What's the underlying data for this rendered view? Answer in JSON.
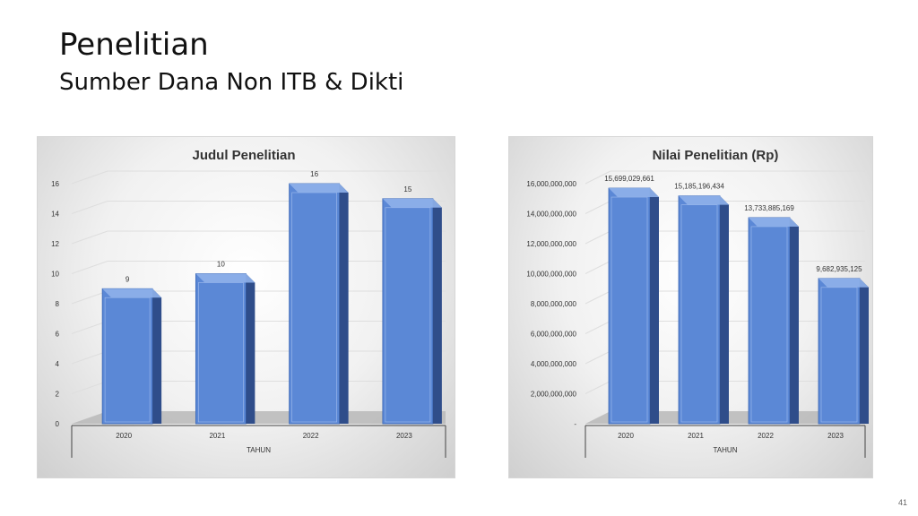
{
  "slide": {
    "title": "Penelitian",
    "subtitle": "Sumber Dana Non ITB & Dikti",
    "page_number": "41"
  },
  "colors": {
    "bar_front": "#5b88d6",
    "bar_side": "#2f4d8a",
    "bar_top": "#8fb1ea",
    "floor": "#b8b8b8",
    "gridline": "#dedede"
  },
  "chart_data": [
    {
      "type": "bar",
      "title": "Judul Penelitian",
      "xlabel": "TAHUN",
      "ylabel": "",
      "categories": [
        "2020",
        "2021",
        "2022",
        "2023"
      ],
      "values": [
        9,
        10,
        16,
        15
      ],
      "value_labels": [
        "9",
        "10",
        "16",
        "15"
      ],
      "ylim": [
        0,
        16
      ],
      "y_ticks": [
        0,
        2,
        4,
        6,
        8,
        10,
        12,
        14,
        16
      ],
      "y_tick_labels": [
        "0",
        "2",
        "4",
        "6",
        "8",
        "10",
        "12",
        "14",
        "16"
      ],
      "grid": true,
      "legend": "none"
    },
    {
      "type": "bar",
      "title": "Nilai Penelitian (Rp)",
      "xlabel": "TAHUN",
      "ylabel": "",
      "categories": [
        "2020",
        "2021",
        "2022",
        "2023"
      ],
      "values": [
        15699029661,
        15185196434,
        13733885169,
        9682935125
      ],
      "value_labels": [
        "15,699,029,661",
        "15,185,196,434",
        "13,733,885,169",
        "9,682,935,125"
      ],
      "ylim": [
        0,
        16000000000
      ],
      "y_ticks": [
        0,
        2000000000,
        4000000000,
        6000000000,
        8000000000,
        10000000000,
        12000000000,
        14000000000,
        16000000000
      ],
      "y_tick_labels": [
        "-",
        "2,000,000,000",
        "4,000,000,000",
        "6,000,000,000",
        "8,000,000,000",
        "10,000,000,000",
        "12,000,000,000",
        "14,000,000,000",
        "16,000,000,000"
      ],
      "grid": true,
      "legend": "none"
    }
  ]
}
